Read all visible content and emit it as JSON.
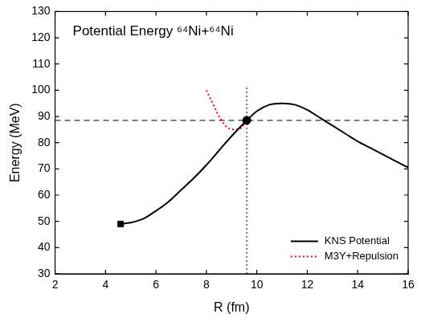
{
  "chart_data": {
    "type": "line",
    "title": "Potential Energy ⁶⁴Ni+⁶⁴Ni",
    "x_label": "R (fm)",
    "y_label": "Energy (MeV)",
    "xlim": [
      2,
      16
    ],
    "xticks": [
      2,
      4,
      6,
      8,
      10,
      12,
      14,
      16
    ],
    "ylim": [
      30,
      130
    ],
    "yticks": [
      30,
      40,
      50,
      60,
      70,
      80,
      90,
      100,
      110,
      120,
      130
    ],
    "grid": false,
    "legend": "lower right",
    "series": [
      {
        "name": "KNS Potential",
        "color": "#000000",
        "line_style": "solid",
        "x": [
          4.6,
          5.0,
          5.5,
          6.0,
          6.5,
          7.0,
          7.5,
          8.0,
          8.5,
          9.0,
          9.6,
          10.0,
          10.5,
          11.0,
          11.5,
          12.0,
          12.5,
          13.0,
          13.5,
          14.0,
          14.5,
          15.0,
          15.5,
          16.0
        ],
        "values": [
          49,
          49.5,
          51,
          54,
          57.5,
          62,
          66.5,
          71.5,
          77,
          82.5,
          88.5,
          92,
          94.5,
          95,
          94.5,
          92.5,
          89.5,
          86.5,
          83.5,
          80.5,
          78,
          75.5,
          73,
          70.5
        ]
      },
      {
        "name": "M3Y+Repulsion",
        "color": "#ff0000",
        "line_style": "dotted",
        "x": [
          8.0,
          8.2,
          8.4,
          8.6,
          8.8,
          9.0,
          9.2,
          9.4,
          9.6
        ],
        "values": [
          100,
          96,
          92,
          88.5,
          86,
          85.2,
          85,
          85.8,
          88.5
        ]
      }
    ],
    "hlines": [
      {
        "y": 88.5,
        "line_style": "dashed",
        "color": "#000000"
      }
    ],
    "vlines": [
      {
        "x": 9.6,
        "y_range": [
          30,
          102
        ],
        "line_style": "dotted",
        "color": "#000000"
      }
    ],
    "points": [
      {
        "x": 9.6,
        "y": 88.5,
        "marker": "circle",
        "color": "#000000"
      },
      {
        "x": 4.6,
        "y": 49,
        "marker": "square",
        "color": "#000000"
      }
    ]
  }
}
